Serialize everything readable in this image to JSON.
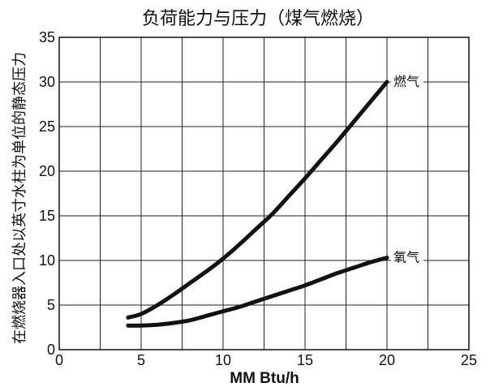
{
  "chart_data": {
    "type": "line",
    "title": "负荷能力与压力（煤气燃烧）",
    "xlabel": "MM Btu/h",
    "ylabel": "在燃烧器入口处以英寸水柱为单位的静态压力",
    "xlim": [
      0,
      25
    ],
    "ylim": [
      0,
      35
    ],
    "xticks": [
      0,
      5,
      10,
      15,
      20,
      25
    ],
    "yticks": [
      0,
      5,
      10,
      15,
      20,
      25,
      30,
      35
    ],
    "grid": true,
    "series": [
      {
        "name": "燃气",
        "x": [
          4.2,
          5,
          6,
          7,
          8,
          9,
          10,
          11,
          12,
          13,
          14,
          15,
          16,
          17,
          18,
          19,
          20
        ],
        "y": [
          3.6,
          4.0,
          5.0,
          6.2,
          7.5,
          8.8,
          10.2,
          11.8,
          13.5,
          15.2,
          17.2,
          19.2,
          21.3,
          23.4,
          25.6,
          27.8,
          30.0
        ]
      },
      {
        "name": "氧气",
        "x": [
          4.2,
          5,
          6,
          7,
          8,
          9,
          10,
          11,
          12,
          13,
          14,
          15,
          16,
          17,
          18,
          19,
          20
        ],
        "y": [
          2.7,
          2.7,
          2.8,
          3.0,
          3.3,
          3.8,
          4.3,
          4.8,
          5.4,
          6.0,
          6.6,
          7.2,
          7.9,
          8.6,
          9.2,
          9.8,
          10.3
        ]
      }
    ]
  }
}
